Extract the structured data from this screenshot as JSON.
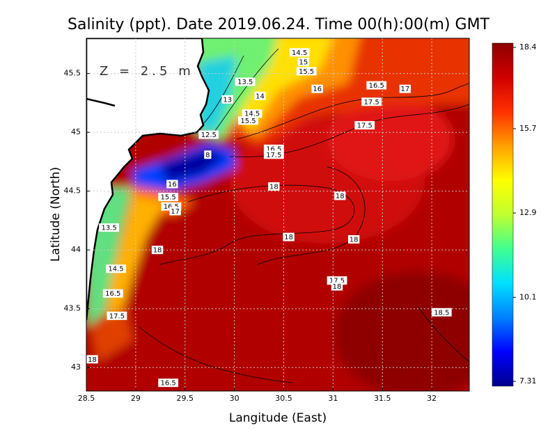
{
  "title": "Salinity (ppt). Date 2019.06.24. Time 00(h):00(m) GMT",
  "depth_label": "Z = 2.5 m",
  "x_axis": {
    "label": "Langitude (East)",
    "lim": [
      28.5,
      32.38
    ],
    "ticks": [
      28.5,
      29,
      29.5,
      30,
      30.5,
      31,
      31.5,
      32
    ]
  },
  "y_axis": {
    "label": "Latitude (North)",
    "lim": [
      42.8,
      45.8
    ],
    "ticks": [
      43,
      43.5,
      44,
      44.5,
      45,
      45.5
    ]
  },
  "grid": true,
  "colorbar": {
    "lim": [
      7.15,
      18.54
    ],
    "ticks": [
      18.4,
      15.7,
      12.9,
      10.1,
      7.31
    ],
    "colors": [
      "#00008c",
      "#0000ff",
      "#0080ff",
      "#00e0ff",
      "#40ff90",
      "#c0ff30",
      "#ffff00",
      "#ffa000",
      "#ff3000",
      "#d00000",
      "#8c0000"
    ]
  },
  "contour_labels": [
    {
      "text": "14.5",
      "lon": 30.66,
      "lat": 45.68
    },
    {
      "text": "15",
      "lon": 30.7,
      "lat": 45.6
    },
    {
      "text": "15.5",
      "lon": 30.73,
      "lat": 45.52
    },
    {
      "text": "16",
      "lon": 30.84,
      "lat": 45.37
    },
    {
      "text": "16.5",
      "lon": 31.44,
      "lat": 45.4
    },
    {
      "text": "17",
      "lon": 31.73,
      "lat": 45.37
    },
    {
      "text": "17.5",
      "lon": 31.39,
      "lat": 45.26
    },
    {
      "text": "17.5",
      "lon": 31.32,
      "lat": 45.06
    },
    {
      "text": "13.5",
      "lon": 30.11,
      "lat": 45.43
    },
    {
      "text": "14",
      "lon": 30.26,
      "lat": 45.31
    },
    {
      "text": "13",
      "lon": 29.93,
      "lat": 45.28
    },
    {
      "text": "14.5",
      "lon": 30.18,
      "lat": 45.16
    },
    {
      "text": "15.5",
      "lon": 30.14,
      "lat": 45.1
    },
    {
      "text": "12.5",
      "lon": 29.74,
      "lat": 44.98
    },
    {
      "text": "8",
      "lon": 29.73,
      "lat": 44.81
    },
    {
      "text": "16.5",
      "lon": 30.4,
      "lat": 44.86
    },
    {
      "text": "17.5",
      "lon": 30.4,
      "lat": 44.81
    },
    {
      "text": "18",
      "lon": 30.4,
      "lat": 44.54
    },
    {
      "text": "18",
      "lon": 31.07,
      "lat": 44.46
    },
    {
      "text": "16",
      "lon": 29.37,
      "lat": 44.56
    },
    {
      "text": "15.5",
      "lon": 29.33,
      "lat": 44.45
    },
    {
      "text": "16.5",
      "lon": 29.36,
      "lat": 44.37
    },
    {
      "text": "17",
      "lon": 29.4,
      "lat": 44.33
    },
    {
      "text": "13.5",
      "lon": 28.73,
      "lat": 44.19
    },
    {
      "text": "18",
      "lon": 29.22,
      "lat": 44.0
    },
    {
      "text": "18",
      "lon": 30.55,
      "lat": 44.11
    },
    {
      "text": "18",
      "lon": 31.21,
      "lat": 44.09
    },
    {
      "text": "14.5",
      "lon": 28.8,
      "lat": 43.84
    },
    {
      "text": "16.5",
      "lon": 28.77,
      "lat": 43.63
    },
    {
      "text": "17.5",
      "lon": 28.81,
      "lat": 43.44
    },
    {
      "text": "17.5",
      "lon": 31.04,
      "lat": 43.74
    },
    {
      "text": "18",
      "lon": 31.04,
      "lat": 43.69
    },
    {
      "text": "18.5",
      "lon": 32.1,
      "lat": 43.47
    },
    {
      "text": "18",
      "lon": 28.56,
      "lat": 43.07
    },
    {
      "text": "16.5",
      "lon": 29.33,
      "lat": 42.87
    }
  ]
}
